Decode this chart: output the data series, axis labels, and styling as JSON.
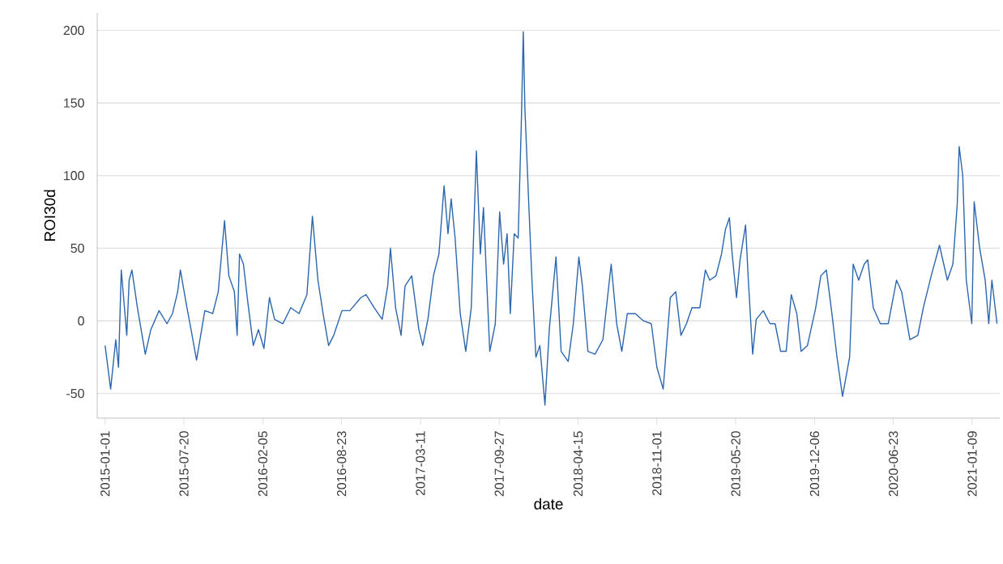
{
  "chart_data": {
    "type": "line",
    "xlabel": "date",
    "ylabel": "ROI30d",
    "xlim": [
      "2014-12-12",
      "2021-03-20"
    ],
    "ylim": [
      -67,
      212
    ],
    "xticks": [
      "2015-01-01",
      "2015-07-20",
      "2016-02-05",
      "2016-08-23",
      "2017-03-11",
      "2017-09-27",
      "2018-04-15",
      "2018-11-01",
      "2019-05-20",
      "2019-12-06",
      "2020-06-23",
      "2021-01-09"
    ],
    "yticks": [
      -50,
      0,
      50,
      100,
      150,
      200
    ],
    "grid": "y",
    "series": [
      {
        "color": "#2b66ae",
        "x": [
          "2015-01-01",
          "2015-01-15",
          "2015-01-28",
          "2015-02-04",
          "2015-02-11",
          "2015-02-25",
          "2015-03-03",
          "2015-03-10",
          "2015-03-24",
          "2015-04-13",
          "2015-04-27",
          "2015-05-18",
          "2015-06-07",
          "2015-06-21",
          "2015-07-04",
          "2015-07-11",
          "2015-07-25",
          "2015-08-07",
          "2015-08-21",
          "2015-09-11",
          "2015-10-01",
          "2015-10-15",
          "2015-10-31",
          "2015-11-11",
          "2015-11-25",
          "2015-12-02",
          "2015-12-08",
          "2015-12-18",
          "2015-12-29",
          "2016-01-12",
          "2016-01-25",
          "2016-02-08",
          "2016-02-22",
          "2016-03-06",
          "2016-03-27",
          "2016-04-16",
          "2016-05-07",
          "2016-05-27",
          "2016-06-10",
          "2016-06-24",
          "2016-07-07",
          "2016-07-21",
          "2016-08-03",
          "2016-08-24",
          "2016-09-13",
          "2016-10-11",
          "2016-10-24",
          "2016-11-14",
          "2016-12-04",
          "2016-12-18",
          "2016-12-25",
          "2017-01-07",
          "2017-01-21",
          "2017-01-31",
          "2017-02-17",
          "2017-03-07",
          "2017-03-17",
          "2017-03-30",
          "2017-04-13",
          "2017-04-27",
          "2017-05-10",
          "2017-05-20",
          "2017-05-28",
          "2017-06-07",
          "2017-06-20",
          "2017-07-04",
          "2017-07-18",
          "2017-07-31",
          "2017-08-10",
          "2017-08-18",
          "2017-08-28",
          "2017-09-03",
          "2017-09-17",
          "2017-09-28",
          "2017-10-08",
          "2017-10-17",
          "2017-10-25",
          "2017-11-04",
          "2017-11-14",
          "2017-11-22",
          "2017-11-27",
          "2017-12-01",
          "2017-12-11",
          "2017-12-19",
          "2017-12-29",
          "2018-01-08",
          "2018-01-21",
          "2018-02-01",
          "2018-02-18",
          "2018-03-03",
          "2018-03-21",
          "2018-04-03",
          "2018-04-17",
          "2018-04-26",
          "2018-05-10",
          "2018-05-28",
          "2018-06-17",
          "2018-07-08",
          "2018-07-22",
          "2018-08-04",
          "2018-08-18",
          "2018-09-07",
          "2018-09-28",
          "2018-10-18",
          "2018-11-01",
          "2018-11-17",
          "2018-12-05",
          "2018-12-19",
          "2019-01-01",
          "2019-01-15",
          "2019-01-29",
          "2019-02-18",
          "2019-03-04",
          "2019-03-15",
          "2019-03-31",
          "2019-04-14",
          "2019-04-24",
          "2019-05-04",
          "2019-05-11",
          "2019-05-22",
          "2019-05-31",
          "2019-06-14",
          "2019-06-21",
          "2019-07-02",
          "2019-07-11",
          "2019-07-29",
          "2019-08-15",
          "2019-08-28",
          "2019-09-11",
          "2019-09-25",
          "2019-10-08",
          "2019-10-22",
          "2019-11-02",
          "2019-11-18",
          "2019-12-09",
          "2019-12-22",
          "2020-01-05",
          "2020-01-19",
          "2020-02-01",
          "2020-02-15",
          "2020-03-04",
          "2020-03-13",
          "2020-03-27",
          "2020-04-10",
          "2020-04-19",
          "2020-05-03",
          "2020-05-21",
          "2020-06-10",
          "2020-07-01",
          "2020-07-14",
          "2020-08-04",
          "2020-08-24",
          "2020-09-07",
          "2020-09-27",
          "2020-10-18",
          "2020-11-07",
          "2020-11-21",
          "2020-12-02",
          "2020-12-07",
          "2020-12-16",
          "2020-12-25",
          "2021-01-08",
          "2021-01-14",
          "2021-01-28",
          "2021-02-11",
          "2021-02-20",
          "2021-02-28",
          "2021-03-13"
        ],
        "values": [
          -17,
          -47,
          -13,
          -32,
          35,
          -10,
          28,
          35,
          9,
          -23,
          -6,
          7,
          -2,
          5,
          20,
          35,
          13,
          -6,
          -27,
          7,
          5,
          20,
          69,
          31,
          20,
          -10,
          46,
          39,
          13,
          -17,
          -6,
          -19,
          16,
          1,
          -2,
          9,
          5,
          18,
          72,
          28,
          5,
          -17,
          -10,
          7,
          7,
          16,
          18,
          9,
          1,
          24,
          50,
          9,
          -10,
          24,
          31,
          -6,
          -17,
          1,
          31,
          46,
          93,
          60,
          84,
          57,
          5,
          -21,
          9,
          117,
          46,
          78,
          16,
          -21,
          -2,
          75,
          39,
          60,
          5,
          60,
          57,
          136,
          199,
          147,
          80,
          28,
          -25,
          -17,
          -58,
          -6,
          44,
          -21,
          -28,
          -2,
          44,
          24,
          -21,
          -23,
          -13,
          39,
          -2,
          -21,
          5,
          5,
          0,
          -2,
          -32,
          -47,
          16,
          20,
          -10,
          -2,
          9,
          9,
          35,
          28,
          31,
          46,
          63,
          71,
          46,
          16,
          42,
          66,
          28,
          -23,
          1,
          7,
          -2,
          -2,
          -21,
          -21,
          18,
          5,
          -21,
          -17,
          9,
          31,
          35,
          5,
          -25,
          -52,
          -25,
          39,
          28,
          39,
          42,
          9,
          -2,
          -2,
          28,
          20,
          -13,
          -10,
          9,
          31,
          52,
          28,
          39,
          80,
          120,
          100,
          28,
          -2,
          82,
          50,
          28,
          -2,
          28,
          -2
        ]
      }
    ]
  }
}
